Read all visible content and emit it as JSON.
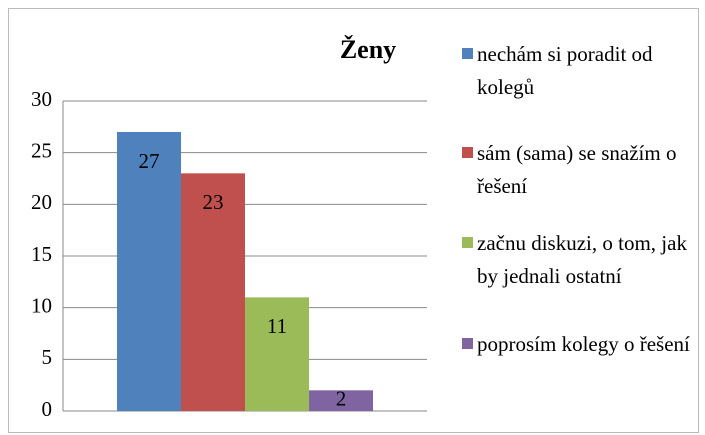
{
  "chart_data": {
    "type": "bar",
    "title": "Ženy",
    "categories": [
      null
    ],
    "series": [
      {
        "name": "nechám si poradit od kolegů",
        "color": "#4f81bd",
        "values": [
          27
        ]
      },
      {
        "name": "sám (sama) se snažím o řešení",
        "color": "#c0504d",
        "values": [
          23
        ]
      },
      {
        "name": "začnu diskuzi, o tom, jak by jednali ostatní",
        "color": "#9bbb59",
        "values": [
          11
        ]
      },
      {
        "name": "poprosím kolegy o řešení",
        "color": "#8064a2",
        "values": [
          2
        ]
      }
    ],
    "ylim": [
      0,
      30
    ],
    "yticks": [
      0,
      5,
      10,
      15,
      20,
      25,
      30
    ],
    "grid": true,
    "legend": "right"
  }
}
